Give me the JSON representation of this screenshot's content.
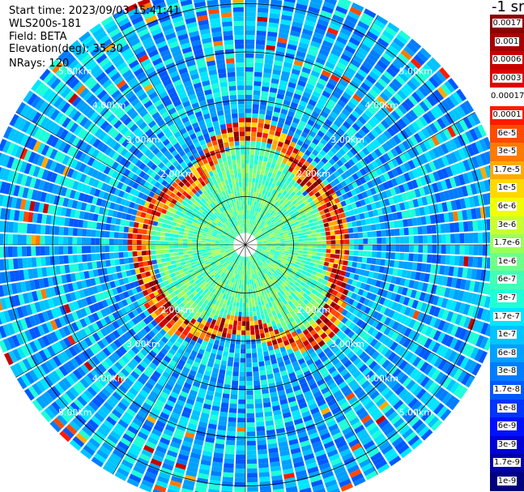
{
  "header": {
    "start_time": "Start time: 2023/09/03 15:41:41",
    "instrument": "WLS200s-181",
    "field": "Field: BETA",
    "elevation": "Elevation(deg): 35.30",
    "nrays": "NRays: 120"
  },
  "colorbar": {
    "unit": "-1 sr",
    "labels": [
      "0.0017",
      "0.001",
      "0.0006",
      "0.0003",
      "0.00017",
      "0.0001",
      "6e-5",
      "3e-5",
      "1.7e-5",
      "1e-5",
      "6e-6",
      "3e-6",
      "1.7e-6",
      "1e-6",
      "6e-7",
      "3e-7",
      "1.7e-7",
      "1e-7",
      "6e-8",
      "3e-8",
      "1.7e-8",
      "1e-8",
      "6e-9",
      "3e-9",
      "1.7e-9",
      "1e-9"
    ],
    "colors": [
      "#8b0000",
      "#a80000",
      "#c80000",
      "#e00000",
      "#ffffff",
      "#ff1a00",
      "#ff4a00",
      "#ff7a00",
      "#ffaa00",
      "#ffd800",
      "#f0ff00",
      "#c8ff30",
      "#9cff5c",
      "#6eff8a",
      "#40ffb8",
      "#1effd8",
      "#00e6ff",
      "#00c4ff",
      "#00a0ff",
      "#007cff",
      "#0058ff",
      "#0034ff",
      "#0010ff",
      "#0000d8",
      "#0000a8",
      "#00007c"
    ]
  },
  "chart_data": {
    "type": "heatmap",
    "projection": "polar PPI",
    "field": "BETA",
    "n_rays": 120,
    "elevation_deg": 35.3,
    "range_rings_km": [
      1.0,
      2.0,
      3.0,
      4.0,
      5.0
    ],
    "range_labels": [
      "2.00km",
      "3.00km",
      "4.00km",
      "5.00km"
    ],
    "max_range_km": 5.5,
    "colorbar_range": [
      1e-09,
      0.0017
    ],
    "log_scale": true
  }
}
